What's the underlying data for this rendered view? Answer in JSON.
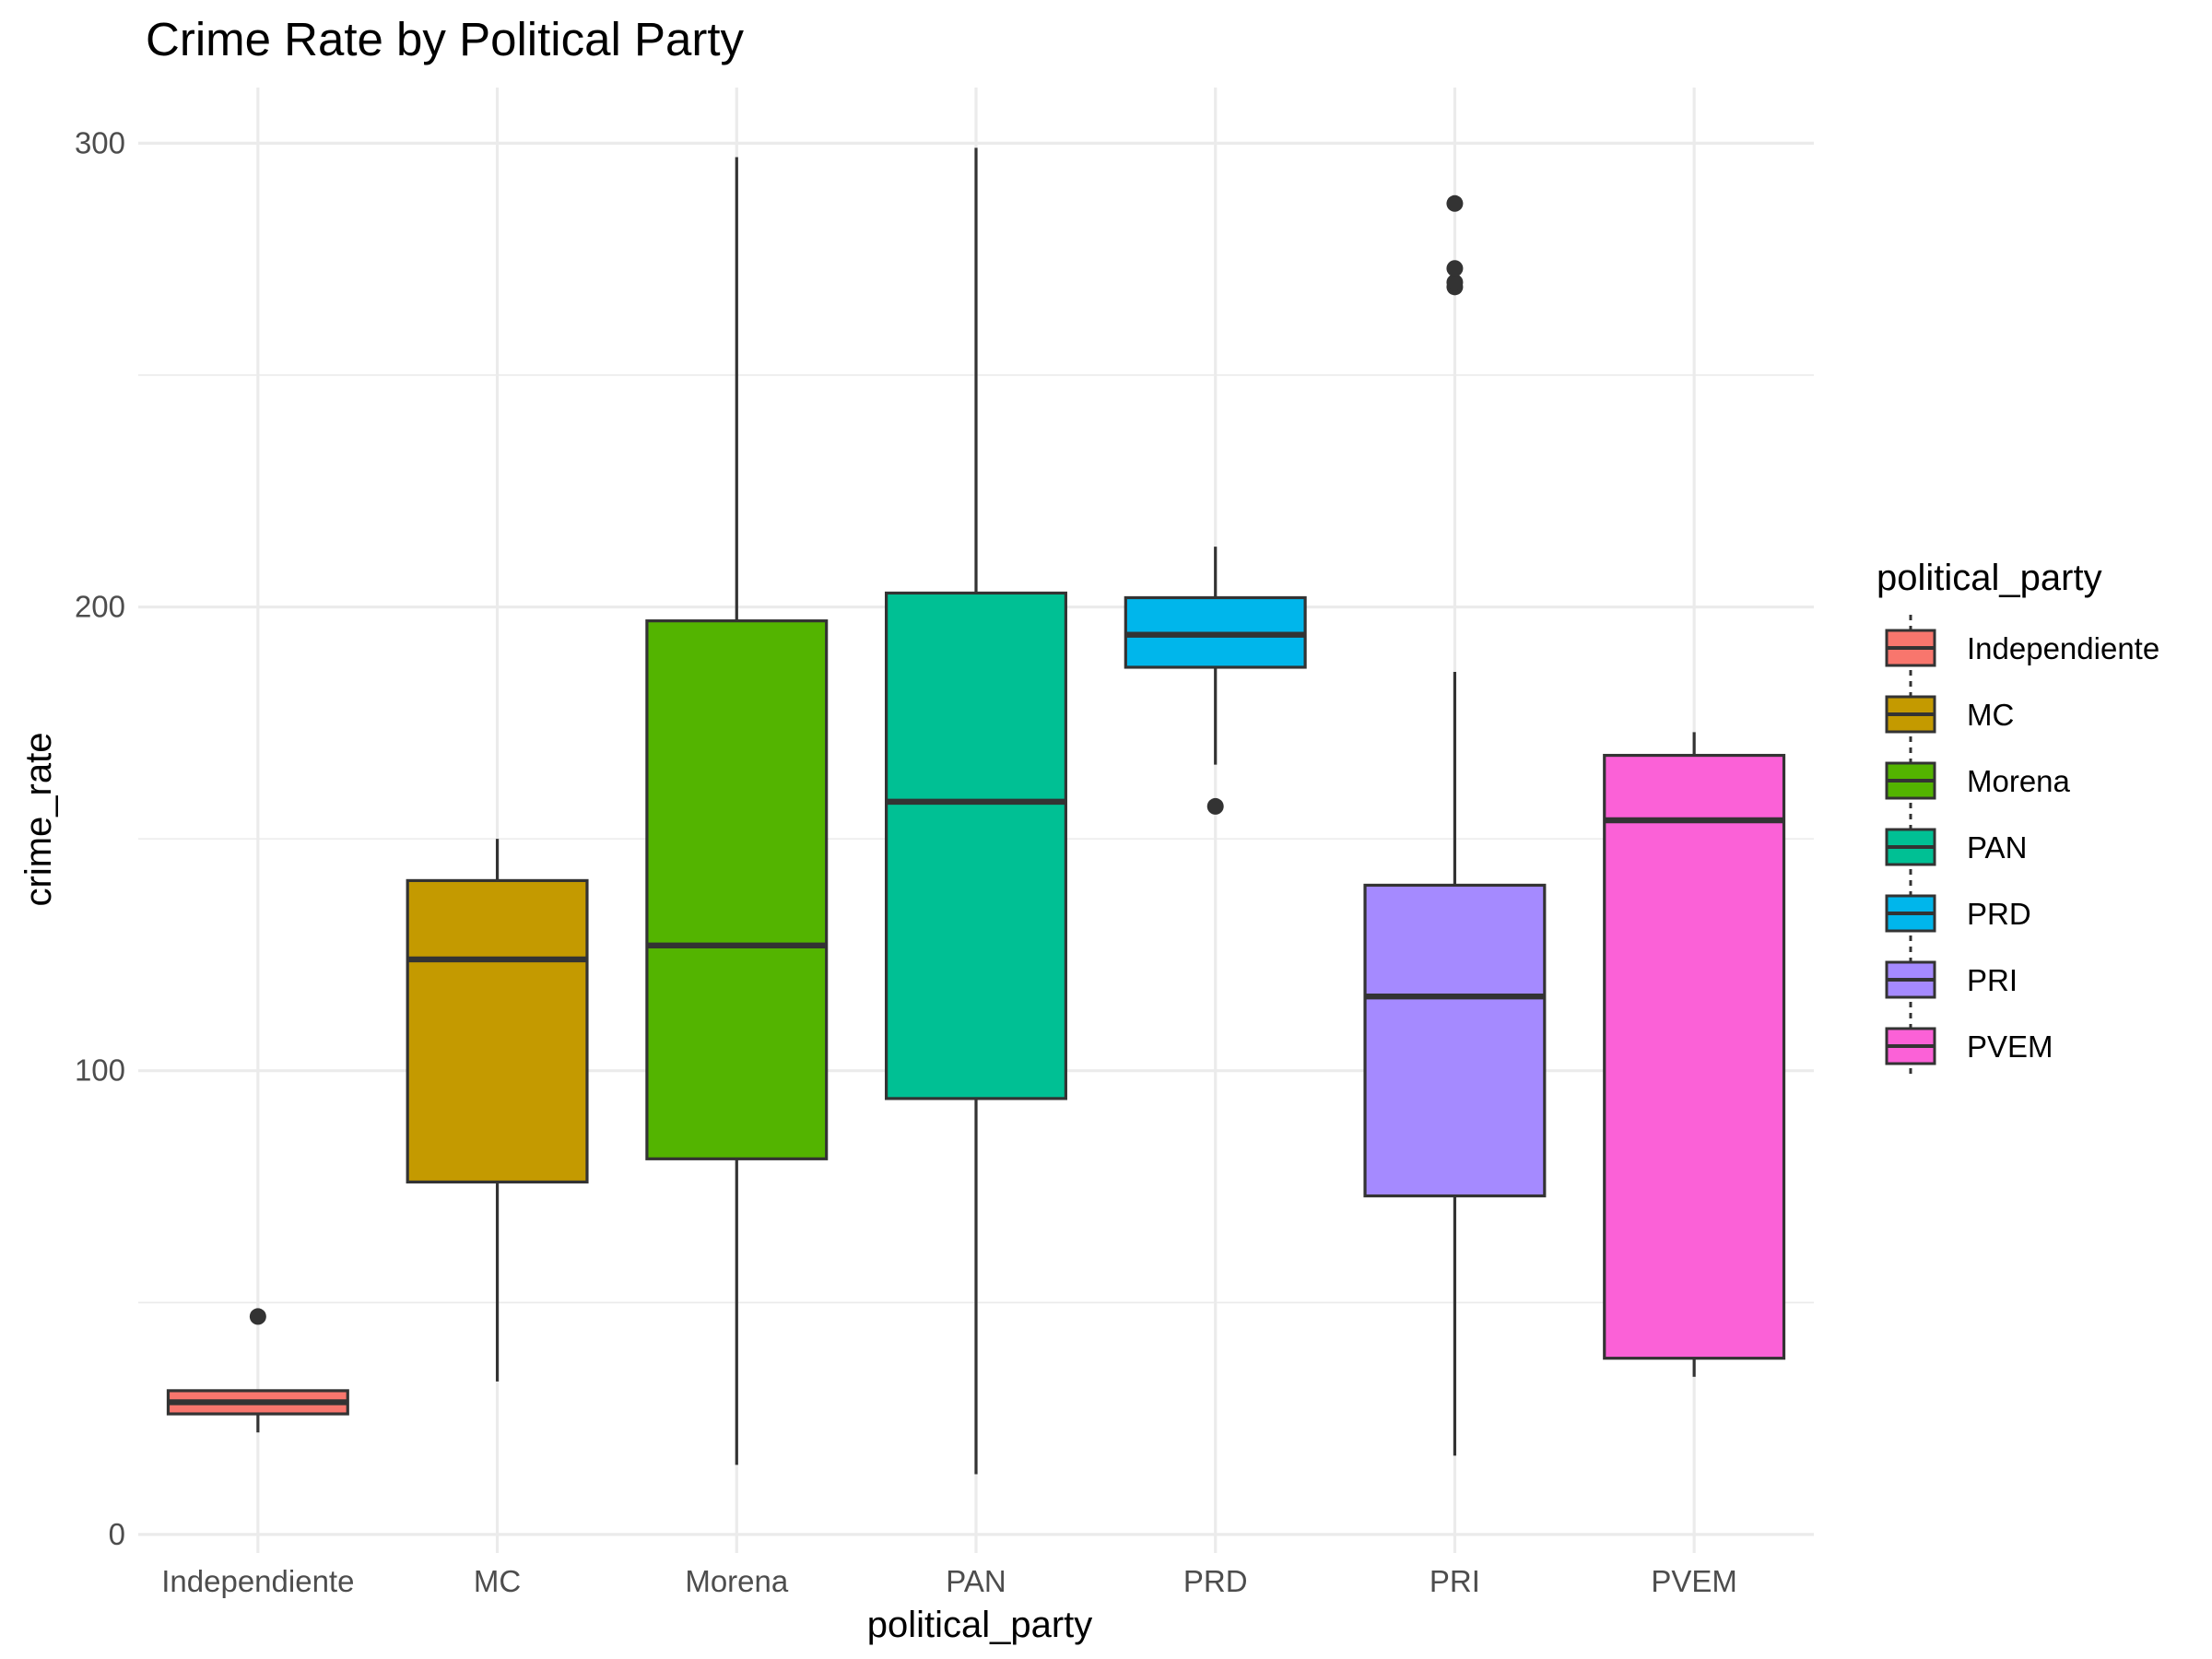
{
  "chart_data": {
    "type": "boxplot",
    "title": "Crime Rate by Political Party",
    "xlabel": "political_party",
    "ylabel": "crime_rate",
    "ylim": [
      -4,
      312
    ],
    "y_ticks": [
      0,
      100,
      200,
      300
    ],
    "grid": true,
    "legend": {
      "title": "political_party",
      "position": "right"
    },
    "categories": [
      "Independiente",
      "MC",
      "Morena",
      "PAN",
      "PRD",
      "PRI",
      "PVEM"
    ],
    "colors": [
      "#F8766D",
      "#C49A00",
      "#53B400",
      "#00C094",
      "#00B6EB",
      "#A58AFF",
      "#FB61D7"
    ],
    "boxes": [
      {
        "name": "Independiente",
        "whisker_low": 22,
        "q1": 26,
        "median": 28.5,
        "q3": 31,
        "whisker_high": 31,
        "outliers": [
          47
        ]
      },
      {
        "name": "MC",
        "whisker_low": 33,
        "q1": 76,
        "median": 124,
        "q3": 141,
        "whisker_high": 150,
        "outliers": []
      },
      {
        "name": "Morena",
        "whisker_low": 15,
        "q1": 81,
        "median": 127,
        "q3": 197,
        "whisker_high": 297,
        "outliers": []
      },
      {
        "name": "PAN",
        "whisker_low": 13,
        "q1": 94,
        "median": 158,
        "q3": 203,
        "whisker_high": 299,
        "outliers": []
      },
      {
        "name": "PRD",
        "whisker_low": 166,
        "q1": 187,
        "median": 194,
        "q3": 202,
        "whisker_high": 213,
        "outliers": [
          157
        ]
      },
      {
        "name": "PRI",
        "whisker_low": 17,
        "q1": 73,
        "median": 116,
        "q3": 140,
        "whisker_high": 186,
        "outliers": [
          269,
          270,
          273,
          287
        ]
      },
      {
        "name": "PVEM",
        "whisker_low": 34,
        "q1": 38,
        "median": 154,
        "q3": 168,
        "whisker_high": 173,
        "outliers": []
      }
    ]
  }
}
